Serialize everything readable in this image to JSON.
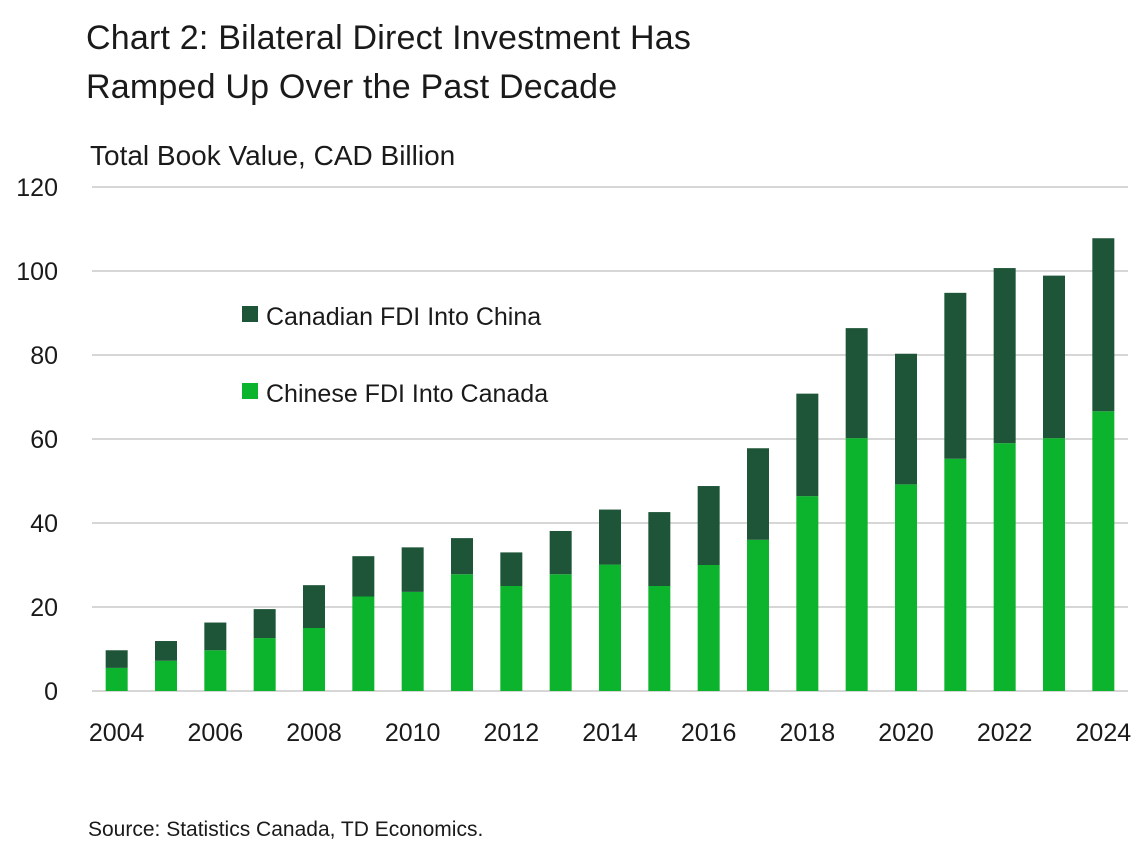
{
  "title_line1": "Chart 2: Bilateral Direct Investment Has",
  "title_line2": "Ramped Up Over the Past Decade",
  "source": "Source: Statistics Canada, TD Economics.",
  "colors": {
    "canadian_fdi": "#1e5538",
    "chinese_fdi": "#0cb32c",
    "grid": "#d6d6d6"
  },
  "chart_data": {
    "type": "bar",
    "stacked": true,
    "title": "Chart 2: Bilateral Direct Investment Has Ramped Up Over the Past Decade",
    "ylabel": "Total Book Value, CAD Billion",
    "xlabel": "",
    "ylim": [
      0,
      120
    ],
    "yticks": [
      0,
      20,
      40,
      60,
      80,
      100,
      120
    ],
    "grid": true,
    "legend_position": "top-left",
    "categories": [
      "2004",
      "2005",
      "2006",
      "2007",
      "2008",
      "2009",
      "2010",
      "2011",
      "2012",
      "2013",
      "2014",
      "2015",
      "2016",
      "2017",
      "2018",
      "2019",
      "2020",
      "2021",
      "2022",
      "2023",
      "2024"
    ],
    "xtick_labels": [
      "2004",
      "2006",
      "2008",
      "2010",
      "2012",
      "2014",
      "2016",
      "2018",
      "2020",
      "2022",
      "2024"
    ],
    "series": [
      {
        "name": "Chinese FDI Into Canada",
        "values": [
          5.5,
          7.2,
          9.7,
          12.6,
          15.0,
          22.5,
          23.6,
          27.8,
          25.0,
          27.8,
          30.1,
          25.0,
          30.0,
          36.0,
          46.4,
          60.2,
          49.2,
          55.3,
          59.0,
          60.2,
          66.6
        ]
      },
      {
        "name": "Canadian FDI Into China",
        "values": [
          4.2,
          4.7,
          6.6,
          6.9,
          10.2,
          9.6,
          10.6,
          8.6,
          8.0,
          10.3,
          13.1,
          17.6,
          18.8,
          21.8,
          24.4,
          26.2,
          31.1,
          39.5,
          41.7,
          38.7,
          41.2
        ]
      }
    ]
  }
}
